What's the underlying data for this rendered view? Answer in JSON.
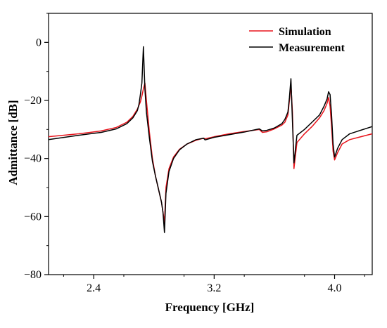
{
  "chart_data": {
    "type": "line",
    "xlabel": "Frequency [GHz]",
    "ylabel": "Admittance [dB]",
    "xlim": [
      2.1,
      4.25
    ],
    "ylim": [
      -80,
      10
    ],
    "xticks": [
      2.4,
      3.2,
      4.0
    ],
    "xtick_labels": [
      "2.4",
      "3.2",
      "4.0"
    ],
    "yticks": [
      0,
      -20,
      -40,
      -60,
      -80
    ],
    "ytick_labels": [
      "0",
      "−20",
      "−40",
      "−60",
      "−80"
    ],
    "grid": false,
    "legend_position": "top-right",
    "series": [
      {
        "name": "Simulation",
        "color": "#e8141c",
        "x": [
          2.1,
          2.3,
          2.45,
          2.55,
          2.62,
          2.66,
          2.69,
          2.71,
          2.72,
          2.73,
          2.74,
          2.75,
          2.77,
          2.79,
          2.81,
          2.83,
          2.85,
          2.86,
          2.87,
          2.88,
          2.9,
          2.93,
          2.97,
          3.02,
          3.08,
          3.13,
          3.14,
          3.2,
          3.3,
          3.4,
          3.5,
          3.52,
          3.55,
          3.6,
          3.65,
          3.67,
          3.69,
          3.7,
          3.71,
          3.72,
          3.73,
          3.75,
          3.8,
          3.85,
          3.9,
          3.93,
          3.95,
          3.96,
          3.97,
          3.98,
          3.99,
          4.0,
          4.02,
          4.05,
          4.1,
          4.25
        ],
        "y": [
          -32.5,
          -31.5,
          -30.5,
          -29.3,
          -27.5,
          -25.5,
          -23.0,
          -20.5,
          -18.5,
          -16.0,
          -14.0,
          -20.0,
          -31.0,
          -40.0,
          -46.0,
          -50.5,
          -55.0,
          -58.5,
          -62.0,
          -50.0,
          -43.5,
          -39.5,
          -36.8,
          -35.0,
          -33.7,
          -33.0,
          -33.2,
          -32.5,
          -31.5,
          -30.7,
          -30.0,
          -31.0,
          -30.8,
          -29.8,
          -28.5,
          -27.5,
          -25.0,
          -20.0,
          -14.5,
          -24.0,
          -43.5,
          -34.5,
          -31.5,
          -29.0,
          -26.0,
          -23.5,
          -21.0,
          -19.0,
          -22.0,
          -29.0,
          -37.5,
          -40.5,
          -38.0,
          -35.0,
          -33.5,
          -31.5
        ]
      },
      {
        "name": "Measurement",
        "color": "#000000",
        "x": [
          2.1,
          2.3,
          2.45,
          2.55,
          2.62,
          2.66,
          2.69,
          2.7,
          2.71,
          2.72,
          2.73,
          2.74,
          2.75,
          2.77,
          2.79,
          2.81,
          2.83,
          2.85,
          2.86,
          2.87,
          2.88,
          2.9,
          2.93,
          2.97,
          3.02,
          3.08,
          3.13,
          3.14,
          3.2,
          3.3,
          3.4,
          3.48,
          3.5,
          3.52,
          3.55,
          3.6,
          3.65,
          3.67,
          3.69,
          3.7,
          3.71,
          3.72,
          3.73,
          3.75,
          3.8,
          3.85,
          3.9,
          3.93,
          3.95,
          3.96,
          3.97,
          3.98,
          3.99,
          4.0,
          4.02,
          4.05,
          4.1,
          4.25
        ],
        "y": [
          -33.5,
          -32.0,
          -31.0,
          -29.8,
          -28.0,
          -26.0,
          -23.5,
          -21.5,
          -18.0,
          -14.0,
          -1.5,
          -16.0,
          -24.0,
          -33.0,
          -41.0,
          -46.0,
          -50.5,
          -55.0,
          -58.5,
          -65.5,
          -52.0,
          -44.5,
          -40.0,
          -37.0,
          -35.0,
          -33.5,
          -33.0,
          -33.6,
          -32.7,
          -31.8,
          -30.9,
          -30.0,
          -29.8,
          -30.5,
          -30.3,
          -29.5,
          -28.0,
          -26.5,
          -24.0,
          -19.0,
          -12.5,
          -27.0,
          -41.5,
          -32.0,
          -30.0,
          -27.5,
          -25.0,
          -22.0,
          -19.5,
          -17.0,
          -18.0,
          -25.0,
          -35.0,
          -39.5,
          -36.5,
          -33.5,
          -31.5,
          -29.0
        ]
      }
    ]
  }
}
